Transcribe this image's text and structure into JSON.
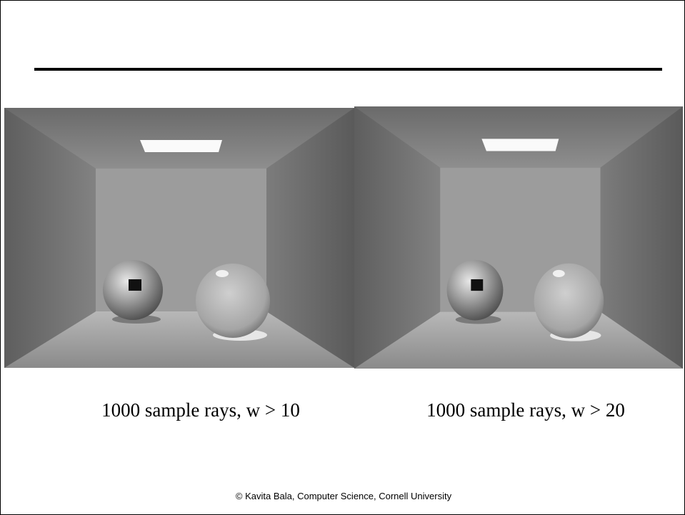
{
  "panels": [
    {
      "caption": "1000 sample rays, w > 10"
    },
    {
      "caption": "1000 sample rays, w > 20"
    }
  ],
  "footer": "© Kavita Bala, Computer Science, Cornell University"
}
